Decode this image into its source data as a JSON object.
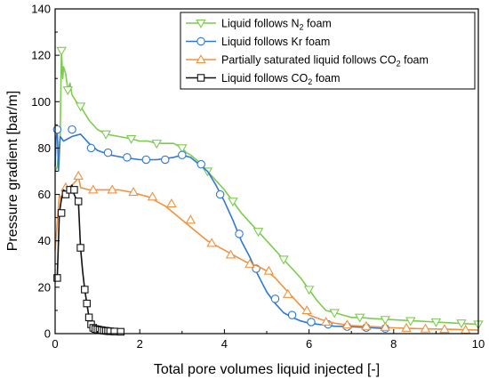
{
  "chart_data": {
    "type": "line",
    "xlabel": "Total pore volumes liquid injected [-]",
    "ylabel": "Pressure gradient [bar/m]",
    "xlim": [
      0,
      10
    ],
    "ylim": [
      0,
      140
    ],
    "xticks": [
      "0",
      "2",
      "4",
      "6",
      "8",
      "10"
    ],
    "yticks": [
      "0",
      "20",
      "40",
      "60",
      "80",
      "100",
      "120",
      "140"
    ],
    "grid": false,
    "legend_position": "top-right",
    "series": [
      {
        "name": "Liquid follows N",
        "subscript": "2",
        "suffix": " foam",
        "color": "#7ccc4e",
        "marker": "triangle-down",
        "x": [
          0,
          0.05,
          0.12,
          0.15,
          0.18,
          0.2,
          0.25,
          0.3,
          0.35,
          0.4,
          0.5,
          0.6,
          0.8,
          1.0,
          1.2,
          1.5,
          1.8,
          2.0,
          2.2,
          2.4,
          2.6,
          2.8,
          3.0,
          3.1,
          3.2,
          3.4,
          3.6,
          3.8,
          4.0,
          4.2,
          4.4,
          4.6,
          4.8,
          5.0,
          5.2,
          5.4,
          5.6,
          5.8,
          6.0,
          6.2,
          6.4,
          6.6,
          6.8,
          7.0,
          7.2,
          7.5,
          8.0,
          8.5,
          9.0,
          9.5,
          10.0
        ],
        "y": [
          70,
          72,
          85,
          122,
          110,
          115,
          112,
          105,
          108,
          103,
          100,
          98,
          92,
          88,
          86,
          85,
          84,
          83,
          83,
          82,
          82,
          82,
          80,
          78,
          77,
          74,
          70,
          66,
          62,
          57,
          52,
          48,
          44,
          40,
          36,
          32,
          28,
          24,
          19,
          14,
          10,
          9,
          8,
          7,
          7,
          6.5,
          6,
          5.5,
          5,
          4.5,
          4
        ],
        "marker_x": [
          0.15,
          0.3,
          0.6,
          1.2,
          1.8,
          2.4,
          3.0,
          3.6,
          4.2,
          4.8,
          5.4,
          6.0,
          6.6,
          7.2,
          7.8,
          8.4,
          9.0,
          9.6,
          10.0
        ],
        "marker_y": [
          122,
          105,
          98,
          86,
          84,
          82,
          80,
          70,
          57,
          44,
          32,
          19,
          9,
          7,
          6,
          5.5,
          5,
          4.5,
          4
        ]
      },
      {
        "name": "Liquid follows Kr foam",
        "color": "#2f78d4",
        "marker": "circle",
        "x": [
          0,
          0.02,
          0.05,
          0.08,
          0.12,
          0.2,
          0.3,
          0.4,
          0.6,
          0.8,
          1.0,
          1.3,
          1.6,
          2.0,
          2.4,
          2.8,
          3.0,
          3.2,
          3.4,
          3.6,
          3.8,
          4.0,
          4.2,
          4.4,
          4.6,
          4.8,
          5.0,
          5.2,
          5.4,
          5.6,
          5.8,
          6.0,
          6.3,
          6.6,
          7.0,
          7.4,
          7.8
        ],
        "y": [
          72,
          84,
          88,
          70,
          85,
          83,
          84,
          85,
          86,
          82,
          79,
          77,
          76,
          75,
          75,
          76,
          77,
          76,
          73,
          70,
          64,
          57,
          49,
          40,
          33,
          25,
          18,
          13,
          9,
          7,
          5.5,
          4.5,
          3.8,
          3.2,
          3,
          2.6,
          2.2
        ],
        "marker_x": [
          0.05,
          0.4,
          0.85,
          1.25,
          1.7,
          2.15,
          2.6,
          3.0,
          3.45,
          3.9,
          4.35,
          4.75,
          5.2,
          5.6,
          6.05,
          6.45,
          6.9,
          7.35,
          7.8
        ],
        "marker_y": [
          88,
          88,
          80,
          78,
          76,
          75,
          75,
          77,
          73,
          60,
          43,
          28,
          15,
          8,
          5,
          4,
          3,
          2.6,
          2.2
        ]
      },
      {
        "name": "Partially saturated liquid follows CO",
        "subscript": "2",
        "suffix": " foam",
        "color": "#f2913c",
        "marker": "triangle-up",
        "x": [
          0,
          0.05,
          0.1,
          0.15,
          0.2,
          0.3,
          0.4,
          0.5,
          0.55,
          0.6,
          0.8,
          1.0,
          1.2,
          1.5,
          1.8,
          2.0,
          2.2,
          2.4,
          2.6,
          2.8,
          3.0,
          3.2,
          3.4,
          3.6,
          3.8,
          4.0,
          4.2,
          4.5,
          4.8,
          5.0,
          5.2,
          5.4,
          5.6,
          5.8,
          6.0,
          6.3,
          6.6,
          7.0,
          7.5,
          8.0,
          8.5,
          9.0,
          9.5,
          10.0
        ],
        "y": [
          36,
          48,
          60,
          58,
          62,
          63,
          64,
          66,
          68,
          63,
          62,
          62,
          62,
          62,
          61,
          60,
          59,
          57,
          55,
          52,
          49,
          46,
          43,
          40,
          38,
          36,
          34,
          31,
          29,
          27,
          24,
          20,
          16,
          12,
          8,
          6,
          4.5,
          3.5,
          3,
          2.5,
          2.2,
          2,
          1.8,
          1.5
        ],
        "marker_x": [
          0.25,
          0.55,
          0.9,
          1.35,
          1.85,
          2.3,
          2.75,
          3.2,
          3.7,
          4.15,
          4.6,
          5.05,
          5.5,
          5.95,
          6.4,
          6.9,
          7.35,
          7.8,
          8.3,
          8.75,
          9.2,
          9.7
        ],
        "marker_y": [
          63,
          68,
          62,
          62,
          61,
          59,
          56,
          49,
          39,
          34,
          30,
          27,
          17,
          10,
          5,
          3.8,
          3.2,
          2.8,
          2.4,
          2.1,
          1.9,
          1.6
        ]
      },
      {
        "name": "Liquid follows CO",
        "subscript": "2",
        "suffix": " foam",
        "color": "#111111",
        "marker": "square",
        "x": [
          0,
          0.05,
          0.1,
          0.15,
          0.2,
          0.25,
          0.3,
          0.35,
          0.4,
          0.45,
          0.5,
          0.55,
          0.6,
          0.65,
          0.7,
          0.75,
          0.8,
          0.85,
          0.9,
          1.0,
          1.1,
          1.2,
          1.3,
          1.4,
          1.5,
          1.55
        ],
        "y": [
          24,
          24,
          52,
          58,
          62,
          61,
          60,
          62,
          64,
          60,
          58,
          57,
          37,
          27,
          19,
          13,
          7,
          4,
          2.5,
          1.8,
          1.5,
          1.2,
          1.0,
          0.9,
          0.8,
          0.8
        ],
        "marker_x": [
          0.05,
          0.15,
          0.25,
          0.35,
          0.45,
          0.55,
          0.6,
          0.7,
          0.75,
          0.8,
          0.85,
          0.9,
          0.95,
          1.0,
          1.05,
          1.1,
          1.15,
          1.2,
          1.25,
          1.3,
          1.4,
          1.55
        ],
        "marker_y": [
          24,
          52,
          60,
          62,
          62,
          57,
          37,
          19,
          13,
          7,
          4,
          2.5,
          2,
          1.8,
          1.6,
          1.5,
          1.3,
          1.2,
          1.1,
          1.0,
          0.9,
          0.8
        ]
      }
    ]
  }
}
